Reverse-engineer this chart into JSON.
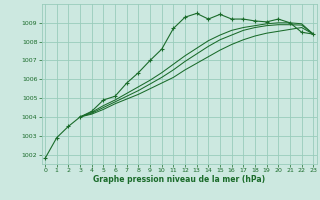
{
  "bg_color": "#cce8e0",
  "grid_color": "#99ccbb",
  "line_color": "#1a6b2a",
  "xlabel": "Graphe pression niveau de la mer (hPa)",
  "ylim": [
    1001.5,
    1010.0
  ],
  "xlim": [
    -0.3,
    23.3
  ],
  "yticks": [
    1002,
    1003,
    1004,
    1005,
    1006,
    1007,
    1008,
    1009
  ],
  "xticks": [
    0,
    1,
    2,
    3,
    4,
    5,
    6,
    7,
    8,
    9,
    10,
    11,
    12,
    13,
    14,
    15,
    16,
    17,
    18,
    19,
    20,
    21,
    22,
    23
  ],
  "series": [
    {
      "x": [
        0,
        1,
        2,
        3,
        4,
        5,
        6,
        7,
        8,
        9,
        10,
        11,
        12,
        13,
        14,
        15,
        16,
        17,
        18,
        19,
        20,
        21,
        22,
        23
      ],
      "y": [
        1001.8,
        1002.9,
        1003.5,
        1004.0,
        1004.3,
        1004.9,
        1005.1,
        1005.8,
        1006.35,
        1007.0,
        1007.6,
        1008.7,
        1009.3,
        1009.5,
        1009.2,
        1009.45,
        1009.2,
        1009.2,
        1009.1,
        1009.05,
        1009.2,
        1009.0,
        1008.5,
        1008.4
      ],
      "marker": true
    },
    {
      "x": [
        3,
        4,
        5,
        6,
        7,
        8,
        9,
        10,
        11,
        12,
        13,
        14,
        15,
        16,
        17,
        18,
        19,
        20,
        21,
        22,
        23
      ],
      "y": [
        1004.0,
        1004.15,
        1004.4,
        1004.7,
        1004.95,
        1005.2,
        1005.5,
        1005.8,
        1006.1,
        1006.5,
        1006.85,
        1007.2,
        1007.55,
        1007.85,
        1008.1,
        1008.3,
        1008.45,
        1008.55,
        1008.65,
        1008.75,
        1008.4
      ],
      "marker": false
    },
    {
      "x": [
        3,
        4,
        5,
        6,
        7,
        8,
        9,
        10,
        11,
        12,
        13,
        14,
        15,
        16,
        17,
        18,
        19,
        20,
        21,
        22,
        23
      ],
      "y": [
        1004.0,
        1004.2,
        1004.5,
        1004.8,
        1005.1,
        1005.4,
        1005.75,
        1006.1,
        1006.5,
        1006.95,
        1007.35,
        1007.75,
        1008.1,
        1008.35,
        1008.6,
        1008.75,
        1008.85,
        1008.9,
        1008.9,
        1008.88,
        1008.4
      ],
      "marker": false
    },
    {
      "x": [
        3,
        4,
        5,
        6,
        7,
        8,
        9,
        10,
        11,
        12,
        13,
        14,
        15,
        16,
        17,
        18,
        19,
        20,
        21,
        22,
        23
      ],
      "y": [
        1004.0,
        1004.25,
        1004.6,
        1004.9,
        1005.25,
        1005.6,
        1005.95,
        1006.35,
        1006.8,
        1007.25,
        1007.65,
        1008.05,
        1008.35,
        1008.6,
        1008.75,
        1008.85,
        1008.95,
        1009.0,
        1009.0,
        1008.95,
        1008.4
      ],
      "marker": false
    }
  ]
}
